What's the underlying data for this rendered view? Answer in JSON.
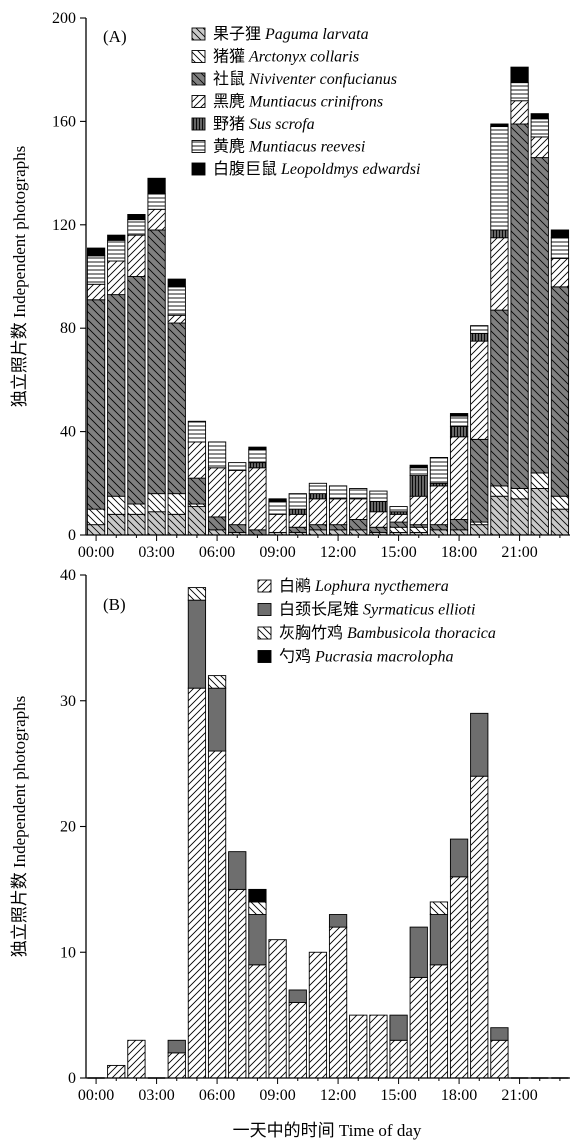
{
  "x_axis_title": "一天中的时间  Time of day",
  "chart_data": [
    {
      "type": "bar",
      "stacked": true,
      "panel_label": "(A)",
      "ylabel": "独立照片数  Independent photographs",
      "ylim": [
        0,
        200
      ],
      "yticks": [
        0,
        40,
        80,
        120,
        160,
        200
      ],
      "xtick_labels": [
        "00:00",
        "03:00",
        "06:00",
        "09:00",
        "12:00",
        "15:00",
        "18:00",
        "21:00"
      ],
      "categories": [
        "00:00",
        "01:00",
        "02:00",
        "03:00",
        "04:00",
        "05:00",
        "06:00",
        "07:00",
        "08:00",
        "09:00",
        "10:00",
        "11:00",
        "12:00",
        "13:00",
        "14:00",
        "15:00",
        "16:00",
        "17:00",
        "18:00",
        "19:00",
        "20:00",
        "21:00",
        "22:00",
        "23:00"
      ],
      "series": [
        {
          "name": "果子狸 Paguma larvata",
          "pattern": "back-gray",
          "values": [
            4,
            8,
            8,
            9,
            8,
            11,
            2,
            1,
            0,
            1,
            1,
            2,
            2,
            2,
            1,
            1,
            1,
            2,
            2,
            4,
            15,
            14,
            18,
            10
          ]
        },
        {
          "name": "猪獾 Arctonyx collaris",
          "pattern": "back-white",
          "values": [
            6,
            7,
            4,
            7,
            8,
            1,
            0,
            0,
            0,
            0,
            0,
            0,
            0,
            0,
            0,
            2,
            2,
            0,
            0,
            1,
            4,
            4,
            6,
            5
          ]
        },
        {
          "name": "社鼠 Niviventer confucianus",
          "pattern": "dark-diag",
          "values": [
            81,
            78,
            88,
            102,
            66,
            10,
            5,
            3,
            2,
            0,
            2,
            2,
            2,
            4,
            2,
            2,
            1,
            2,
            4,
            32,
            68,
            141,
            122,
            81
          ]
        },
        {
          "name": "黑麂 Muntiacus crinifrons",
          "pattern": "fwd-white",
          "values": [
            6,
            13,
            16,
            8,
            3,
            14,
            19,
            21,
            24,
            7,
            5,
            10,
            10,
            8,
            6,
            3,
            11,
            15,
            32,
            38,
            28,
            9,
            8,
            11
          ]
        },
        {
          "name": "野猪 Sus scrofa",
          "pattern": "dark-vert",
          "values": [
            0,
            0,
            0,
            0,
            0,
            0,
            0,
            0,
            2,
            0,
            2,
            2,
            0,
            0,
            4,
            1,
            8,
            1,
            4,
            3,
            3,
            0,
            0,
            0
          ]
        },
        {
          "name": "黄麂 Muntiacus reevesi",
          "pattern": "horiz",
          "values": [
            11,
            8,
            6,
            6,
            11,
            8,
            10,
            3,
            5,
            5,
            6,
            4,
            5,
            4,
            4,
            2,
            3,
            10,
            4,
            3,
            40,
            7,
            7,
            8
          ]
        },
        {
          "name": "白腹巨鼠 Leopoldmys edwardsi",
          "pattern": "black",
          "values": [
            3,
            2,
            2,
            6,
            3,
            0,
            0,
            0,
            1,
            1,
            0,
            0,
            0,
            0,
            0,
            0,
            1,
            0,
            1,
            0,
            1,
            6,
            2,
            3
          ]
        }
      ]
    },
    {
      "type": "bar",
      "stacked": true,
      "panel_label": "(B)",
      "ylabel": "独立照片数  Independent photographs",
      "ylim": [
        0,
        40
      ],
      "yticks": [
        0,
        10,
        20,
        30,
        40
      ],
      "xtick_labels": [
        "00:00",
        "03:00",
        "06:00",
        "09:00",
        "12:00",
        "15:00",
        "18:00",
        "21:00"
      ],
      "categories": [
        "00:00",
        "01:00",
        "02:00",
        "03:00",
        "04:00",
        "05:00",
        "06:00",
        "07:00",
        "08:00",
        "09:00",
        "10:00",
        "11:00",
        "12:00",
        "13:00",
        "14:00",
        "15:00",
        "16:00",
        "17:00",
        "18:00",
        "19:00",
        "20:00",
        "21:00",
        "22:00",
        "23:00"
      ],
      "series": [
        {
          "name": "白鹇 Lophura nycthemera",
          "pattern": "fwd-white",
          "values": [
            0,
            1,
            3,
            0,
            2,
            31,
            26,
            15,
            9,
            11,
            6,
            10,
            12,
            5,
            5,
            3,
            8,
            9,
            16,
            24,
            3,
            0,
            0,
            0
          ]
        },
        {
          "name": "白颈长尾雉 Syrmaticus ellioti",
          "pattern": "dark-gray",
          "values": [
            0,
            0,
            0,
            0,
            1,
            7,
            5,
            3,
            4,
            0,
            1,
            0,
            1,
            0,
            0,
            2,
            4,
            4,
            3,
            5,
            1,
            0,
            0,
            0
          ]
        },
        {
          "name": "灰胸竹鸡 Bambusicola thoracica",
          "pattern": "back-white",
          "values": [
            0,
            0,
            0,
            0,
            0,
            1,
            1,
            0,
            1,
            0,
            0,
            0,
            0,
            0,
            0,
            0,
            0,
            1,
            0,
            0,
            0,
            0,
            0,
            0
          ]
        },
        {
          "name": "勺鸡 Pucrasia macrolopha",
          "pattern": "black",
          "values": [
            0,
            0,
            0,
            0,
            0,
            0,
            0,
            0,
            1,
            0,
            0,
            0,
            0,
            0,
            0,
            0,
            0,
            0,
            0,
            0,
            0,
            0,
            0,
            0
          ]
        }
      ]
    }
  ]
}
